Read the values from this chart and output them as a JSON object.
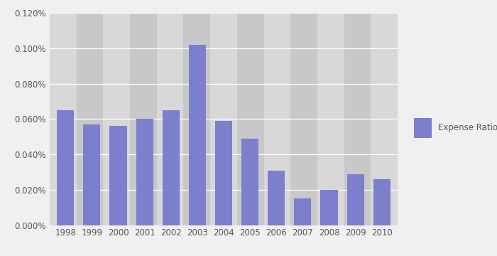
{
  "years": [
    "1998",
    "1999",
    "2000",
    "2001",
    "2002",
    "2003",
    "2004",
    "2005",
    "2006",
    "2007",
    "2008",
    "2009",
    "2010"
  ],
  "values": [
    0.00065,
    0.00057,
    0.00056,
    0.0006,
    0.00065,
    0.00102,
    0.00059,
    0.00049,
    0.00031,
    0.00015,
    0.0002,
    0.00029,
    0.00026
  ],
  "bar_color": "#7b7fcc",
  "legend_label": "Expense Ratio",
  "ylim": [
    0,
    0.0012
  ],
  "ytick_values": [
    0.0,
    0.0002,
    0.0004,
    0.0006,
    0.0008,
    0.001,
    0.0012
  ],
  "plot_bg_color": "#d8d8d8",
  "col_stripe_color": "#c8c8c8",
  "fig_bg_color": "#f0f0f0",
  "grid_color": "#ffffff",
  "tick_color": "#555555",
  "tick_fontsize": 8.5
}
